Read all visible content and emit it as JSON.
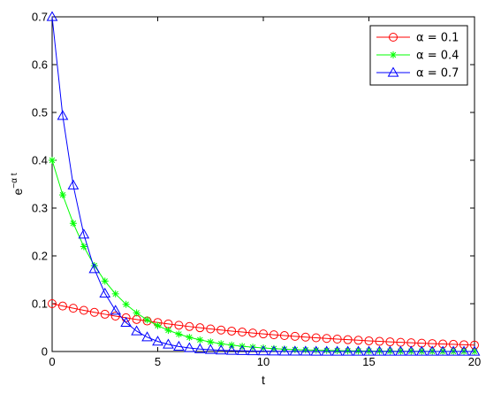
{
  "chart_data": {
    "type": "line",
    "title": "",
    "xlabel": "t",
    "ylabel_base": "e",
    "ylabel_exp": "−α t",
    "xlim": [
      0,
      20
    ],
    "ylim": [
      0,
      0.7
    ],
    "grid": false,
    "legend_position": "top-right",
    "x_ticks": [
      0,
      5,
      10,
      15,
      20
    ],
    "x_tick_labels": [
      "0",
      "5",
      "10",
      "15",
      "20"
    ],
    "y_ticks": [
      0,
      0.1,
      0.2,
      0.3,
      0.4,
      0.5,
      0.6,
      0.7
    ],
    "y_tick_labels": [
      "0",
      "0.1",
      "0.2",
      "0.3",
      "0.4",
      "0.5",
      "0.6",
      "0.7"
    ],
    "x": [
      0,
      0.5,
      1,
      1.5,
      2,
      2.5,
      3,
      3.5,
      4,
      4.5,
      5,
      5.5,
      6,
      6.5,
      7,
      7.5,
      8,
      8.5,
      9,
      9.5,
      10,
      10.5,
      11,
      11.5,
      12,
      12.5,
      13,
      13.5,
      14,
      14.5,
      15,
      15.5,
      16,
      16.5,
      17,
      17.5,
      18,
      18.5,
      19,
      19.5,
      20
    ],
    "series": [
      {
        "name": "α = 0.1",
        "color": "#ff0000",
        "marker": "circle",
        "values": [
          0.1,
          0.0951,
          0.0905,
          0.0861,
          0.0819,
          0.0779,
          0.0741,
          0.0705,
          0.067,
          0.0638,
          0.0607,
          0.0577,
          0.0549,
          0.0522,
          0.0497,
          0.0472,
          0.0449,
          0.0427,
          0.0407,
          0.0387,
          0.0368,
          0.035,
          0.0333,
          0.0317,
          0.0301,
          0.0287,
          0.0273,
          0.0259,
          0.0247,
          0.0235,
          0.0223,
          0.0212,
          0.0202,
          0.0192,
          0.0183,
          0.0174,
          0.0165,
          0.0157,
          0.015,
          0.0142,
          0.0135
        ]
      },
      {
        "name": "α = 0.4",
        "color": "#00ff00",
        "marker": "star",
        "values": [
          0.4,
          0.3275,
          0.2681,
          0.2195,
          0.1797,
          0.1472,
          0.1205,
          0.0986,
          0.0808,
          0.0661,
          0.0541,
          0.0443,
          0.0363,
          0.0297,
          0.0243,
          0.0199,
          0.0163,
          0.0134,
          0.0109,
          0.009,
          0.0073,
          0.006,
          0.0049,
          0.004,
          0.0033,
          0.0027,
          0.0022,
          0.0018,
          0.0015,
          0.0012,
          0.001,
          0.0008,
          0.0007,
          0.0005,
          0.0004,
          0.0004,
          0.0003,
          0.0002,
          0.0002,
          0.0002,
          0.0001
        ]
      },
      {
        "name": "α = 0.7",
        "color": "#0000ff",
        "marker": "triangle",
        "values": [
          0.7,
          0.4931,
          0.3476,
          0.2449,
          0.1726,
          0.1216,
          0.0857,
          0.0604,
          0.0426,
          0.03,
          0.0211,
          0.0149,
          0.0105,
          0.0074,
          0.0052,
          0.0037,
          0.0026,
          0.0018,
          0.0013,
          0.0009,
          0.0006,
          0.0005,
          0.0003,
          0.0002,
          0.0002,
          0.0001,
          0.0001,
          0.0001,
          0,
          0,
          0,
          0,
          0,
          0,
          0,
          0,
          0,
          0,
          0,
          0,
          0
        ]
      }
    ]
  }
}
